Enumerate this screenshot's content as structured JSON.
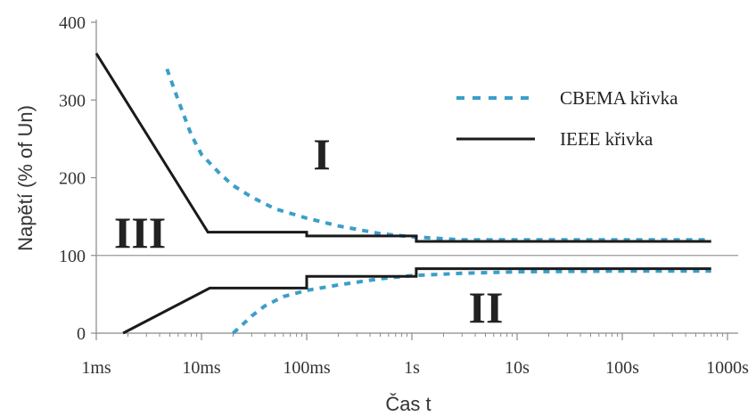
{
  "chart_data": {
    "type": "line",
    "xlabel": "Čas t",
    "ylabel": "Napětí (% of Un)",
    "xscale": "log",
    "x_unit": "seconds",
    "xlim": [
      0.001,
      1000
    ],
    "ylim": [
      0,
      400
    ],
    "x_ticks": [
      {
        "value": 0.001,
        "label": "1ms"
      },
      {
        "value": 0.01,
        "label": "10ms"
      },
      {
        "value": 0.1,
        "label": "100ms"
      },
      {
        "value": 1,
        "label": "1s"
      },
      {
        "value": 10,
        "label": "10s"
      },
      {
        "value": 100,
        "label": "100s"
      },
      {
        "value": 1000,
        "label": "1000s"
      }
    ],
    "y_ticks": [
      {
        "value": 0,
        "label": "0"
      },
      {
        "value": 100,
        "label": "100"
      },
      {
        "value": 200,
        "label": "200"
      },
      {
        "value": 300,
        "label": "300"
      },
      {
        "value": 400,
        "label": "400"
      }
    ],
    "reference_line": {
      "y": 100
    },
    "grid": false,
    "legend_position": "top-right",
    "series": [
      {
        "name": "CBEMA křivka",
        "style": "dashed",
        "color": "#3a9fc9",
        "segments": [
          [
            [
              0.0047,
              340
            ],
            [
              0.006,
              300
            ],
            [
              0.008,
              255
            ],
            [
              0.01,
              230
            ],
            [
              0.015,
              205
            ],
            [
              0.02,
              190
            ],
            [
              0.03,
              175
            ],
            [
              0.05,
              160
            ],
            [
              0.1,
              148
            ],
            [
              0.2,
              138
            ],
            [
              0.5,
              128
            ],
            [
              1,
              124
            ],
            [
              3,
              120
            ],
            [
              10,
              120
            ],
            [
              100,
              120
            ],
            [
              700,
              120
            ]
          ],
          [
            [
              0.02,
              0
            ],
            [
              0.025,
              12
            ],
            [
              0.03,
              22
            ],
            [
              0.04,
              35
            ],
            [
              0.06,
              47
            ],
            [
              0.1,
              55
            ],
            [
              0.2,
              62
            ],
            [
              0.5,
              70
            ],
            [
              1,
              74
            ],
            [
              3,
              77
            ],
            [
              10,
              79
            ],
            [
              100,
              80
            ],
            [
              700,
              80
            ]
          ]
        ]
      },
      {
        "name": "IEEE křivka",
        "style": "solid",
        "color": "#1a1a1a",
        "segments": [
          [
            [
              0.001,
              360
            ],
            [
              0.0115,
              130
            ],
            [
              0.1,
              130
            ],
            [
              0.1,
              125
            ],
            [
              1.1,
              125
            ],
            [
              1.1,
              118
            ],
            [
              700,
              118
            ]
          ],
          [
            [
              0.0018,
              0
            ],
            [
              0.012,
              58
            ],
            [
              0.1,
              58
            ],
            [
              0.1,
              73
            ],
            [
              1.1,
              73
            ],
            [
              1.1,
              83
            ],
            [
              700,
              83
            ]
          ]
        ]
      }
    ],
    "annotations": [
      {
        "text": "I",
        "x": 0.2,
        "y": 230
      },
      {
        "text": "II",
        "x": 8,
        "y": 35
      },
      {
        "text": "III",
        "x": 0.0044,
        "y": 130
      }
    ]
  }
}
